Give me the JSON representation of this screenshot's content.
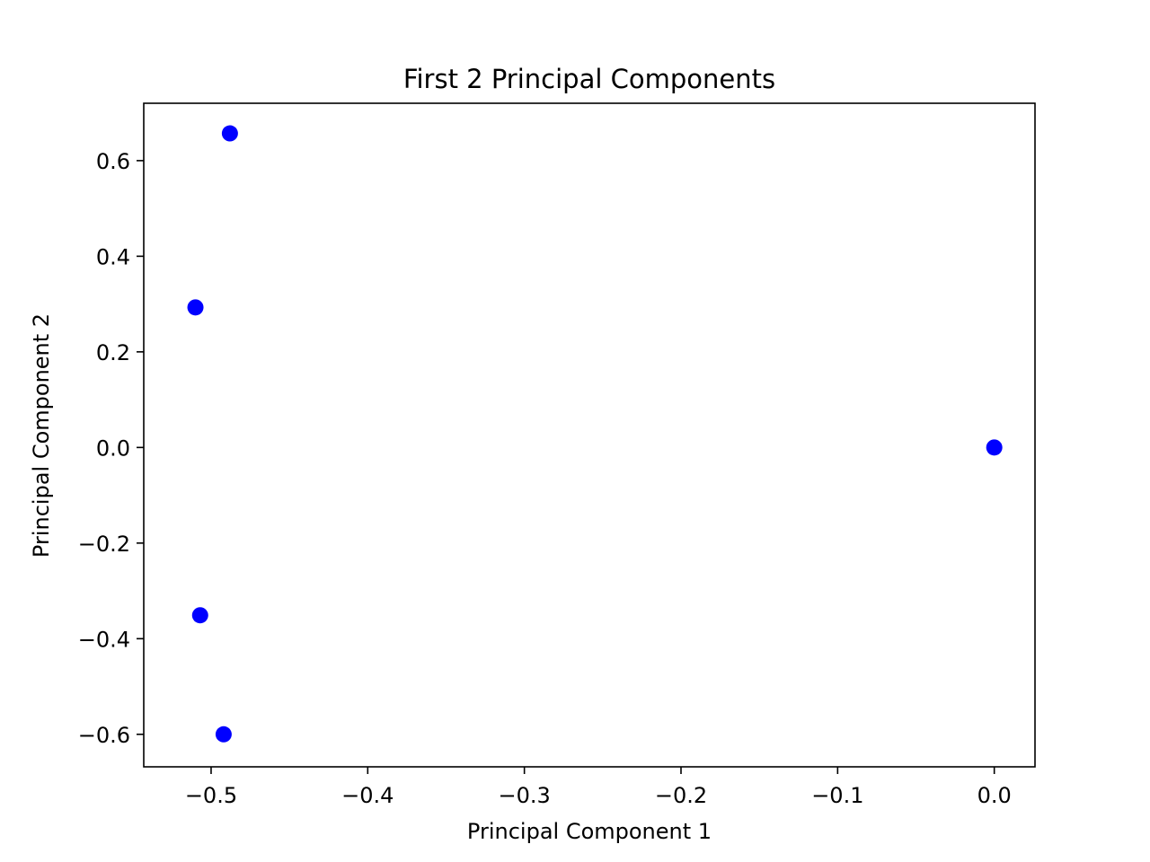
{
  "chart_data": {
    "type": "scatter",
    "title": "First 2 Principal Components",
    "xlabel": "Principal Component 1",
    "ylabel": "Principal Component 2",
    "xlim": [
      -0.543,
      0.026
    ],
    "ylim": [
      -0.668,
      0.72
    ],
    "xticks": [
      -0.5,
      -0.4,
      -0.3,
      -0.2,
      -0.1,
      0.0
    ],
    "xtick_labels": [
      "−0.5",
      "−0.4",
      "−0.3",
      "−0.2",
      "−0.1",
      "0.0"
    ],
    "yticks": [
      0.6,
      0.4,
      0.2,
      0.0,
      -0.2,
      -0.4,
      -0.6
    ],
    "ytick_labels": [
      "0.6",
      "0.4",
      "0.2",
      "0.0",
      "−0.2",
      "−0.4",
      "−0.6"
    ],
    "grid": false,
    "marker_color": "#0000ff",
    "points": [
      {
        "x": -0.488,
        "y": 0.657
      },
      {
        "x": -0.51,
        "y": 0.293
      },
      {
        "x": 0.0,
        "y": 0.0
      },
      {
        "x": -0.507,
        "y": -0.351
      },
      {
        "x": -0.492,
        "y": -0.6
      }
    ]
  }
}
